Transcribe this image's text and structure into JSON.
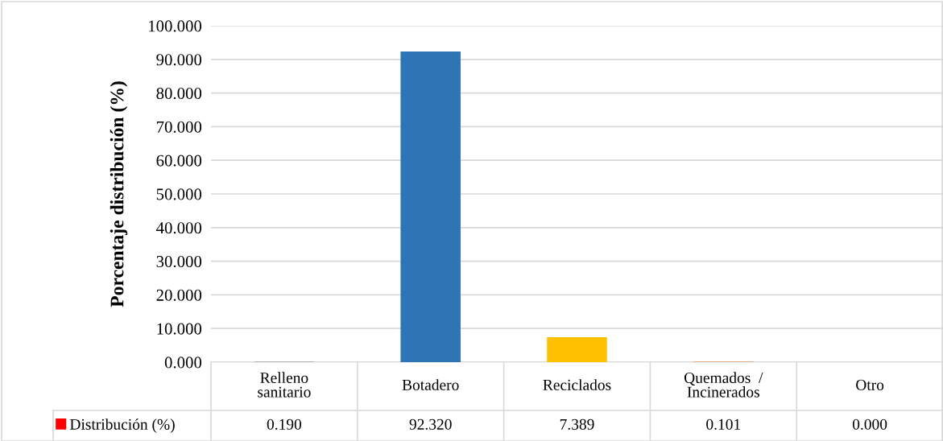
{
  "chart_data": {
    "type": "bar",
    "ylabel": "Porcentaje distribución (%)",
    "categories": [
      "Relleno\nsanitario",
      "Botadero",
      "Reciclados",
      "Quemados  /\nIncinerados",
      "Otro"
    ],
    "series": [
      {
        "name": "Distribución (%)",
        "color": "#ff0000",
        "colors": [
          "#a5a5a5",
          "#2e75b6",
          "#ffc000",
          "#ed7d31",
          "#70ad47"
        ],
        "values": [
          0.19,
          92.32,
          7.389,
          0.101,
          0.0
        ],
        "value_labels": [
          "0.190",
          "92.320",
          "7.389",
          "0.101",
          "0.000"
        ]
      }
    ],
    "ylim": [
      0,
      100
    ],
    "yticks": [
      {
        "value": 0,
        "label": "0.000"
      },
      {
        "value": 10,
        "label": "10.000"
      },
      {
        "value": 20,
        "label": "20.000"
      },
      {
        "value": 30,
        "label": "30.000"
      },
      {
        "value": 40,
        "label": "40.000"
      },
      {
        "value": 50,
        "label": "50.000"
      },
      {
        "value": 60,
        "label": "60.000"
      },
      {
        "value": 70,
        "label": "70.000"
      },
      {
        "value": 80,
        "label": "80.000"
      },
      {
        "value": 90,
        "label": "90.000"
      },
      {
        "value": 100,
        "label": "100.000"
      }
    ],
    "grid": "y",
    "legend": "bottom",
    "data_labels": true
  }
}
